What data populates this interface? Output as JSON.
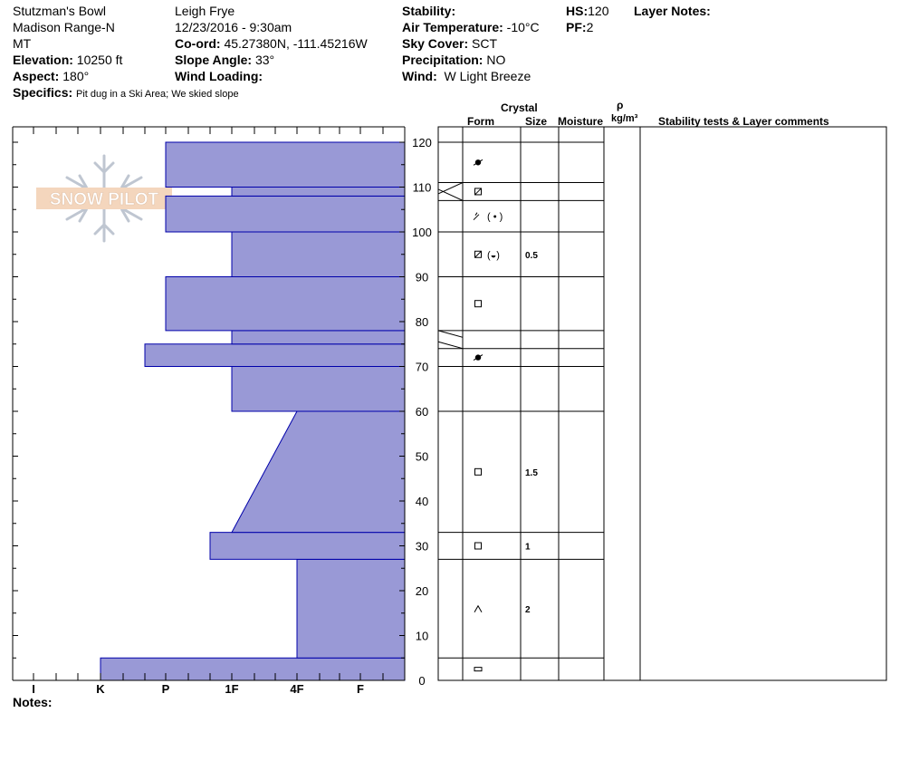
{
  "header": {
    "location": "Stutzman's Bowl",
    "range": "Madison Range-N",
    "state": "MT",
    "elevation_label": "Elevation:",
    "elevation": "10250 ft",
    "aspect_label": "Aspect:",
    "aspect": "180°",
    "specifics_label": "Specifics:",
    "specifics": "Pit dug in a Ski Area; We skied slope",
    "observer": "Leigh Frye",
    "datetime": "12/23/2016 - 9:30am",
    "coord_label": "Co-ord:",
    "coord": "45.27380N, -111.45216W",
    "slope_label": "Slope Angle:",
    "slope": "33°",
    "wind_loading_label": "Wind Loading:",
    "wind_loading": "",
    "stability_label": "Stability:",
    "stability": "",
    "air_temp_label": "Air Temperature:",
    "air_temp": "-10°C",
    "sky_label": "Sky Cover:",
    "sky": "SCT",
    "precip_label": "Precipitation:",
    "precip": "NO",
    "wind_label": "Wind:",
    "wind": "W Light Breeze",
    "hs_label": "HS:",
    "hs": "120",
    "pf_label": "PF:",
    "pf": "2",
    "layer_notes_label": "Layer Notes:"
  },
  "watermark": {
    "text": "SNOW PILOT"
  },
  "table_headers": {
    "crystal": "Crystal",
    "form": "Form",
    "size": "Size",
    "moisture": "Moisture",
    "rho": "ρ",
    "density_unit": "kg/m³",
    "comments": "Stability tests & Layer comments"
  },
  "notes_label": "Notes:",
  "colors": {
    "hardness_fill": "#9999d6",
    "hardness_stroke": "#0000aa"
  },
  "chart_data": {
    "type": "snow-profile",
    "y_axis": {
      "label": "",
      "min": 0,
      "max": 123,
      "ticks": [
        0,
        10,
        20,
        30,
        40,
        50,
        60,
        70,
        80,
        90,
        100,
        110,
        120
      ]
    },
    "x_axis": {
      "categories": [
        "I",
        "K",
        "P",
        "1F",
        "4F",
        "F"
      ],
      "direction": "reversed"
    },
    "hardness_layers": [
      {
        "bottom": 0,
        "top": 5,
        "hardness": "K"
      },
      {
        "bottom": 5,
        "top": 27,
        "hardness": "4F"
      },
      {
        "bottom": 27,
        "top": 33,
        "hardness": "1F+"
      },
      {
        "bottom": 33,
        "top": 60,
        "hardness": "1F",
        "top_hardness": "4F",
        "gradient": true
      },
      {
        "bottom": 60,
        "top": 70,
        "hardness": "1F"
      },
      {
        "bottom": 70,
        "top": 75,
        "hardness": "P-"
      },
      {
        "bottom": 75,
        "top": 78,
        "hardness": "1F"
      },
      {
        "bottom": 78,
        "top": 90,
        "hardness": "P"
      },
      {
        "bottom": 90,
        "top": 100,
        "hardness": "1F"
      },
      {
        "bottom": 100,
        "top": 108,
        "hardness": "P"
      },
      {
        "bottom": 108,
        "top": 110,
        "hardness": "1F"
      },
      {
        "bottom": 110,
        "top": 120,
        "hardness": "P"
      }
    ],
    "table_layers": [
      {
        "bottom": 0,
        "top": 5,
        "form": "rounded-rect",
        "size": ""
      },
      {
        "bottom": 5,
        "top": 27,
        "form": "depth-hoar",
        "size": "2"
      },
      {
        "bottom": 27,
        "top": 33,
        "form": "faceted",
        "size": "1"
      },
      {
        "bottom": 33,
        "top": 60,
        "form": "faceted",
        "size": "1.5"
      },
      {
        "bottom": 60,
        "top": 70,
        "form": "",
        "size": ""
      },
      {
        "bottom": 70,
        "top": 74,
        "form": "melt-freeze",
        "size": ""
      },
      {
        "bottom": 74,
        "top": 78,
        "form": "",
        "size": ""
      },
      {
        "bottom": 78,
        "top": 90,
        "form": "faceted",
        "size": ""
      },
      {
        "bottom": 90,
        "top": 100,
        "form": "faceted-rounded + (rounded-faceted)",
        "size": "0.5"
      },
      {
        "bottom": 100,
        "top": 107,
        "form": "decomposing + (rounded)",
        "size": ""
      },
      {
        "bottom": 107,
        "top": 111,
        "form": "faceted-rounded",
        "size": ""
      },
      {
        "bottom": 111,
        "top": 120,
        "form": "melt-freeze",
        "size": ""
      }
    ]
  }
}
